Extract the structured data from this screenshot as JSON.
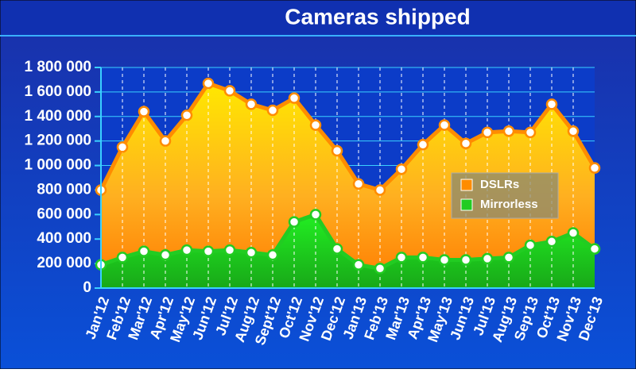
{
  "chart_data": {
    "type": "area",
    "title": "Cameras shipped",
    "categories": [
      "Jan'12",
      "Feb'12",
      "Mar'12",
      "Apr'12",
      "May'12",
      "Jun'12",
      "Jul'12",
      "Aug'12",
      "Sept'12",
      "Oct'12",
      "Nov'12",
      "Dec'12",
      "Jan'13",
      "Feb'13",
      "Mar'13",
      "Apr'13",
      "May'13",
      "Jun'13",
      "Jul'13",
      "Aug'13",
      "Sep'13",
      "Oct'13",
      "Nov'13",
      "Dec'13"
    ],
    "series": [
      {
        "name": "DSLRs",
        "color": "#ff8c00",
        "values": [
          800000,
          1150000,
          1440000,
          1200000,
          1410000,
          1670000,
          1610000,
          1500000,
          1450000,
          1550000,
          1330000,
          1120000,
          850000,
          800000,
          970000,
          1170000,
          1330000,
          1180000,
          1270000,
          1280000,
          1270000,
          1500000,
          1280000,
          980000
        ]
      },
      {
        "name": "Mirrorless",
        "color": "#22cc22",
        "values": [
          190000,
          250000,
          300000,
          270000,
          310000,
          300000,
          310000,
          290000,
          270000,
          540000,
          600000,
          320000,
          190000,
          160000,
          250000,
          250000,
          230000,
          230000,
          240000,
          250000,
          350000,
          380000,
          450000,
          320000
        ]
      }
    ],
    "ylim": [
      0,
      1800000
    ],
    "yticks": [
      0,
      {
        "value": 200000,
        "label": "200 000"
      },
      {
        "value": 400000,
        "label": "400 000"
      },
      {
        "value": 600000,
        "label": "600 000"
      },
      {
        "value": 800000,
        "label": "800 000"
      },
      {
        "value": 1000000,
        "label": "1 000 000"
      },
      {
        "value": 1200000,
        "label": "1 200 000"
      },
      {
        "value": 1400000,
        "label": "1 400 000"
      },
      {
        "value": 1600000,
        "label": "1 600 000"
      },
      {
        "value": 1800000,
        "label": "1 800 000"
      }
    ],
    "grid": true,
    "legend": "right"
  }
}
